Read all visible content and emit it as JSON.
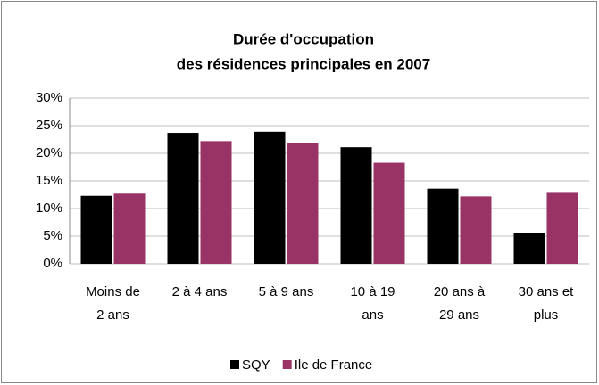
{
  "chart_data": {
    "type": "bar",
    "title": [
      "Durée d'occupation",
      "des résidences principales en 2007"
    ],
    "categories": [
      "Moins de 2 ans",
      "2 à 4 ans",
      "5 à 9 ans",
      "10 à 19 ans",
      "20 ans à 29 ans",
      "30 ans et plus"
    ],
    "series": [
      {
        "name": "SQY",
        "color": "#000000",
        "values": [
          12.3,
          23.7,
          23.9,
          21.1,
          13.6,
          5.6
        ]
      },
      {
        "name": "Ile de France",
        "color": "#993366",
        "values": [
          12.7,
          22.2,
          21.8,
          18.3,
          12.2,
          13.0
        ]
      }
    ],
    "ylim": [
      0,
      30
    ],
    "yticks": [
      {
        "value": 0,
        "label": "0%"
      },
      {
        "value": 5,
        "label": "5%"
      },
      {
        "value": 10,
        "label": "10%"
      },
      {
        "value": 15,
        "label": "15%"
      },
      {
        "value": 20,
        "label": "20%"
      },
      {
        "value": 25,
        "label": "25%"
      },
      {
        "value": 30,
        "label": "30%"
      }
    ],
    "grid": true,
    "legend": "bottom"
  }
}
